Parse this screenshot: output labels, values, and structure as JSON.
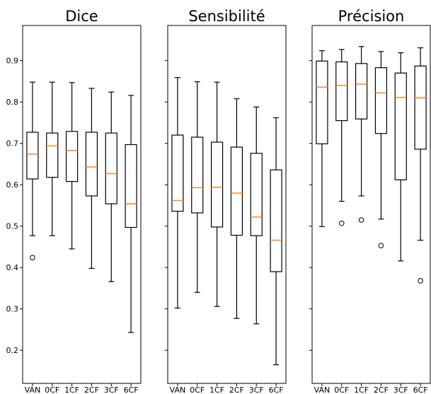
{
  "chart_data": [
    {
      "type": "box",
      "title": "Dice",
      "categories": [
        "VAN",
        "0CF",
        "1CF",
        "2CF",
        "3CF",
        "6CF"
      ],
      "ylim": [
        0.12,
        0.985
      ],
      "yticks": [
        0.2,
        0.3,
        0.4,
        0.5,
        0.6,
        0.7,
        0.8,
        0.9
      ],
      "ytick_labels": [
        "0.2",
        "0.3",
        "0.4",
        "0.5",
        "0.6",
        "0.7",
        "0.8",
        "0.9"
      ],
      "boxes": [
        {
          "whislo": 0.477,
          "q1": 0.614,
          "med": 0.674,
          "q3": 0.727,
          "whishi": 0.848,
          "fliers": [
            0.424
          ]
        },
        {
          "whislo": 0.477,
          "q1": 0.618,
          "med": 0.694,
          "q3": 0.725,
          "whishi": 0.848,
          "fliers": []
        },
        {
          "whislo": 0.445,
          "q1": 0.608,
          "med": 0.683,
          "q3": 0.729,
          "whishi": 0.847,
          "fliers": []
        },
        {
          "whislo": 0.398,
          "q1": 0.573,
          "med": 0.643,
          "q3": 0.727,
          "whishi": 0.833,
          "fliers": []
        },
        {
          "whislo": 0.366,
          "q1": 0.554,
          "med": 0.627,
          "q3": 0.725,
          "whishi": 0.824,
          "fliers": []
        },
        {
          "whislo": 0.243,
          "q1": 0.497,
          "med": 0.554,
          "q3": 0.697,
          "whishi": 0.816,
          "fliers": []
        }
      ]
    },
    {
      "type": "box",
      "title": "Sensibilité",
      "categories": [
        "VAN",
        "0CF",
        "1CF",
        "2CF",
        "3CF",
        "6CF"
      ],
      "ylim": [
        0.12,
        0.985
      ],
      "yticks": [
        0.2,
        0.3,
        0.4,
        0.5,
        0.6,
        0.7,
        0.8,
        0.9
      ],
      "ytick_labels": [],
      "boxes": [
        {
          "whislo": 0.302,
          "q1": 0.536,
          "med": 0.562,
          "q3": 0.72,
          "whishi": 0.859,
          "fliers": []
        },
        {
          "whislo": 0.34,
          "q1": 0.532,
          "med": 0.593,
          "q3": 0.715,
          "whishi": 0.849,
          "fliers": []
        },
        {
          "whislo": 0.306,
          "q1": 0.498,
          "med": 0.594,
          "q3": 0.703,
          "whishi": 0.848,
          "fliers": []
        },
        {
          "whislo": 0.277,
          "q1": 0.478,
          "med": 0.58,
          "q3": 0.691,
          "whishi": 0.808,
          "fliers": []
        },
        {
          "whislo": 0.264,
          "q1": 0.477,
          "med": 0.522,
          "q3": 0.676,
          "whishi": 0.788,
          "fliers": []
        },
        {
          "whislo": 0.165,
          "q1": 0.39,
          "med": 0.466,
          "q3": 0.636,
          "whishi": 0.762,
          "fliers": []
        }
      ]
    },
    {
      "type": "box",
      "title": "Précision",
      "categories": [
        "VAN",
        "0CF",
        "1CF",
        "2CF",
        "3CF",
        "6CF"
      ],
      "ylim": [
        0.12,
        0.985
      ],
      "yticks": [
        0.2,
        0.3,
        0.4,
        0.5,
        0.6,
        0.7,
        0.8,
        0.9
      ],
      "ytick_labels": [],
      "boxes": [
        {
          "whislo": 0.499,
          "q1": 0.699,
          "med": 0.836,
          "q3": 0.899,
          "whishi": 0.924,
          "fliers": []
        },
        {
          "whislo": 0.56,
          "q1": 0.755,
          "med": 0.84,
          "q3": 0.897,
          "whishi": 0.927,
          "fliers": [
            0.507
          ]
        },
        {
          "whislo": 0.573,
          "q1": 0.759,
          "med": 0.843,
          "q3": 0.893,
          "whishi": 0.934,
          "fliers": [
            0.515
          ]
        },
        {
          "whislo": 0.517,
          "q1": 0.724,
          "med": 0.822,
          "q3": 0.883,
          "whishi": 0.922,
          "fliers": [
            0.453
          ]
        },
        {
          "whislo": 0.416,
          "q1": 0.612,
          "med": 0.811,
          "q3": 0.87,
          "whishi": 0.919,
          "fliers": []
        },
        {
          "whislo": 0.466,
          "q1": 0.686,
          "med": 0.81,
          "q3": 0.887,
          "whishi": 0.931,
          "fliers": [
            0.368
          ]
        }
      ]
    }
  ]
}
